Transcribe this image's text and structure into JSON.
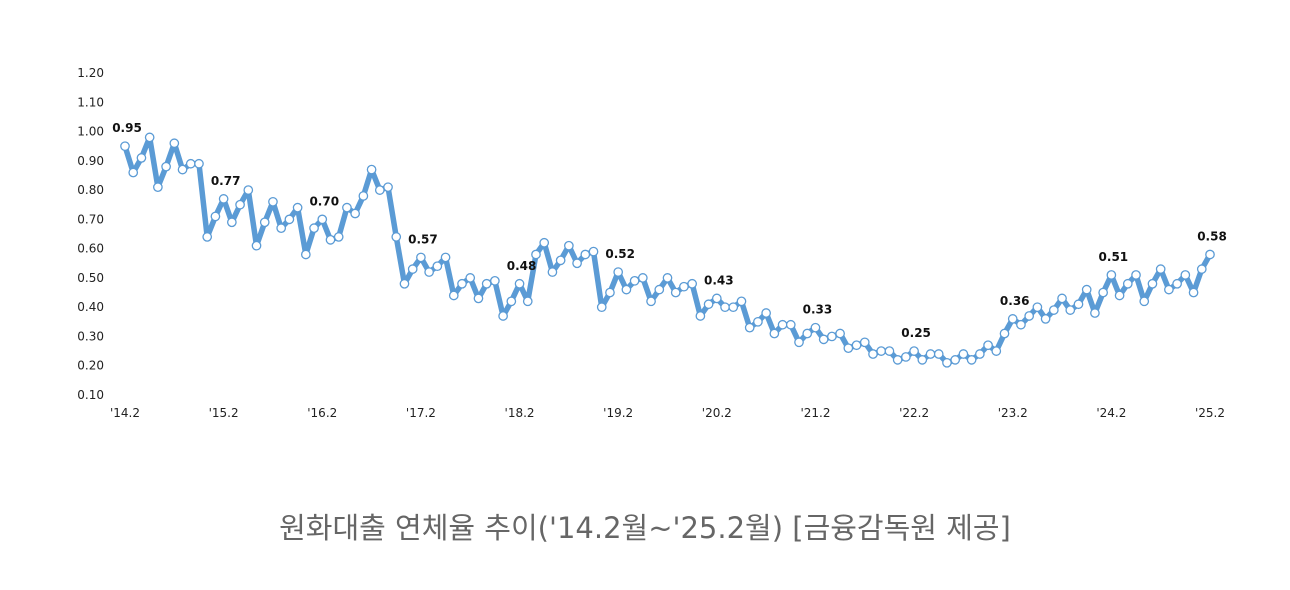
{
  "caption": "원화대출 연체율 추이('14.2월~'25.2월) [금융감독원 제공]",
  "colors": {
    "line": "#5b9bd5",
    "marker_fill": "#ffffff",
    "marker_stroke": "#5b9bd5"
  },
  "chart_data": {
    "type": "line",
    "title": "",
    "xlabel": "",
    "ylabel": "",
    "ylim": [
      0.1,
      1.2
    ],
    "y_ticks": [
      "1.20",
      "1.10",
      "1.00",
      "0.90",
      "0.80",
      "0.70",
      "0.60",
      "0.50",
      "0.40",
      "0.30",
      "0.20",
      "0.10"
    ],
    "y_tick_values": [
      1.2,
      1.1,
      1.0,
      0.9,
      0.8,
      0.7,
      0.6,
      0.5,
      0.4,
      0.3,
      0.2,
      0.1
    ],
    "x_ticks": [
      "'14.2",
      "'15.2",
      "'16.2",
      "'17.2",
      "'18.2",
      "'19.2",
      "'20.2",
      "'21.2",
      "'22.2",
      "'23.2",
      "'24.2",
      "'25.2"
    ],
    "x_tick_index": [
      0,
      12,
      24,
      36,
      48,
      60,
      72,
      84,
      96,
      108,
      120,
      132
    ],
    "grid": false,
    "legend": "none",
    "series": [
      {
        "values": [
          0.95,
          0.86,
          0.91,
          0.98,
          0.81,
          0.88,
          0.96,
          0.87,
          0.89,
          0.89,
          0.64,
          0.71,
          0.77,
          0.69,
          0.75,
          0.8,
          0.61,
          0.69,
          0.76,
          0.67,
          0.7,
          0.74,
          0.58,
          0.67,
          0.7,
          0.63,
          0.64,
          0.74,
          0.72,
          0.78,
          0.87,
          0.8,
          0.81,
          0.64,
          0.48,
          0.53,
          0.57,
          0.52,
          0.54,
          0.57,
          0.44,
          0.48,
          0.5,
          0.43,
          0.48,
          0.49,
          0.37,
          0.42,
          0.48,
          0.42,
          0.58,
          0.62,
          0.52,
          0.56,
          0.61,
          0.55,
          0.58,
          0.59,
          0.4,
          0.45,
          0.52,
          0.46,
          0.49,
          0.5,
          0.42,
          0.46,
          0.5,
          0.45,
          0.47,
          0.48,
          0.37,
          0.41,
          0.43,
          0.4,
          0.4,
          0.42,
          0.33,
          0.35,
          0.38,
          0.31,
          0.34,
          0.34,
          0.28,
          0.31,
          0.33,
          0.29,
          0.3,
          0.31,
          0.26,
          0.27,
          0.28,
          0.24,
          0.25,
          0.25,
          0.22,
          0.23,
          0.25,
          0.22,
          0.24,
          0.24,
          0.21,
          0.22,
          0.24,
          0.22,
          0.24,
          0.27,
          0.25,
          0.31,
          0.36,
          0.34,
          0.37,
          0.4,
          0.36,
          0.39,
          0.43,
          0.39,
          0.41,
          0.46,
          0.38,
          0.45,
          0.51,
          0.44,
          0.48,
          0.51,
          0.42,
          0.48,
          0.53,
          0.46,
          0.48,
          0.51,
          0.45,
          0.53,
          0.58
        ]
      }
    ],
    "data_labels": [
      {
        "index": 0,
        "text": "0.95"
      },
      {
        "index": 12,
        "text": "0.77"
      },
      {
        "index": 24,
        "text": "0.70"
      },
      {
        "index": 36,
        "text": "0.57"
      },
      {
        "index": 48,
        "text": "0.48"
      },
      {
        "index": 60,
        "text": "0.52"
      },
      {
        "index": 72,
        "text": "0.43"
      },
      {
        "index": 84,
        "text": "0.33"
      },
      {
        "index": 96,
        "text": "0.25"
      },
      {
        "index": 108,
        "text": "0.36"
      },
      {
        "index": 120,
        "text": "0.51"
      },
      {
        "index": 132,
        "text": "0.58"
      }
    ]
  }
}
